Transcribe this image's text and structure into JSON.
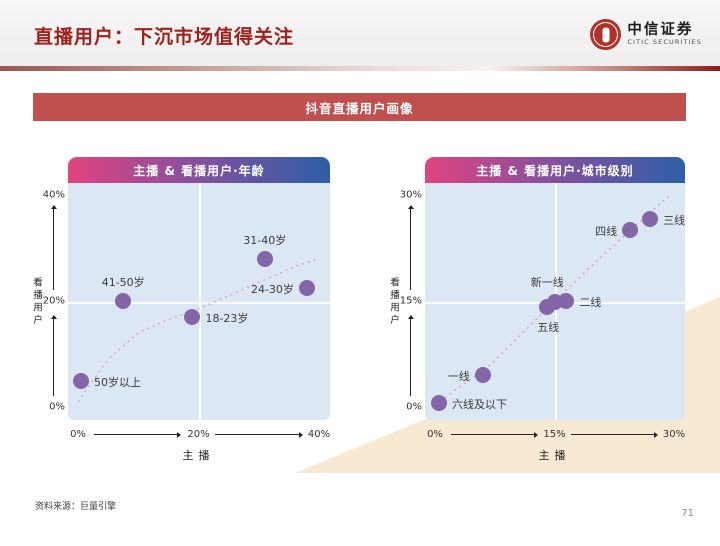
{
  "page": {
    "title": "直播用户：下沉市场值得关注",
    "source_note": "资料来源：巨量引擎",
    "page_number": "71"
  },
  "logo": {
    "icon": "citic-emblem-icon",
    "name_cn": "中信证券",
    "name_en": "CITIC SECURITIES"
  },
  "banner": {
    "label": "抖音直播用户画像"
  },
  "colors": {
    "title_red": "#9e211b",
    "banner_red": "#c0504d",
    "header_gradient_left": "#e2437e",
    "header_gradient_right": "#2d5ea7",
    "plot_background": "#dce7f4",
    "dot_purple": "#8465a8",
    "trend_pink": "#e39ab5",
    "wedge_beige": "#f8e9d2"
  },
  "chart_data": [
    {
      "type": "scatter",
      "title": "主播 & 看播用户·年龄",
      "xlabel": "主播",
      "ylabel": "看播用户",
      "x_ticks": [
        "0%",
        "20%",
        "40%"
      ],
      "y_ticks": [
        "0%",
        "20%",
        "40%"
      ],
      "xlim": [
        0,
        40
      ],
      "ylim": [
        0,
        40
      ],
      "grid": "center cross",
      "legend": "none",
      "points": [
        {
          "label": "50岁以上",
          "x": 0.5,
          "y": 5,
          "label_side": "right"
        },
        {
          "label": "41-50岁",
          "x": 7.5,
          "y": 20,
          "label_side": "above"
        },
        {
          "label": "18-23岁",
          "x": 19,
          "y": 17,
          "label_side": "right"
        },
        {
          "label": "31-40岁",
          "x": 31,
          "y": 28,
          "label_side": "above"
        },
        {
          "label": "24-30岁",
          "x": 38,
          "y": 22.5,
          "label_side": "left"
        }
      ],
      "trend_points": [
        [
          0,
          1
        ],
        [
          5,
          9
        ],
        [
          10,
          14
        ],
        [
          15,
          16.5
        ],
        [
          20,
          18.5
        ],
        [
          25,
          21
        ],
        [
          31,
          24
        ],
        [
          36,
          26.5
        ],
        [
          40,
          28
        ]
      ]
    },
    {
      "type": "scatter",
      "title": "主播 & 看播用户·城市级别",
      "xlabel": "主播",
      "ylabel": "看播用户",
      "x_ticks": [
        "0%",
        "15%",
        "30%"
      ],
      "y_ticks": [
        "0%",
        "15%",
        "30%"
      ],
      "xlim": [
        0,
        30
      ],
      "ylim": [
        0,
        30
      ],
      "grid": "center cross",
      "legend": "none",
      "points": [
        {
          "label": "六线及以下",
          "x": 0.5,
          "y": 0.5,
          "label_side": "right"
        },
        {
          "label": "一线",
          "x": 6,
          "y": 4.5,
          "label_side": "left"
        },
        {
          "label": "五线",
          "x": 14,
          "y": 14.2,
          "label_side": "below"
        },
        {
          "label": "新一线",
          "x": 15,
          "y": 14.8,
          "label_side": "above-left"
        },
        {
          "label": "二线",
          "x": 16.5,
          "y": 15,
          "label_side": "right"
        },
        {
          "label": "四线",
          "x": 24.5,
          "y": 25,
          "label_side": "left"
        },
        {
          "label": "三线",
          "x": 27,
          "y": 26.6,
          "label_side": "right"
        }
      ],
      "trend_points": [
        [
          0,
          0.3
        ],
        [
          7,
          6
        ],
        [
          15,
          15
        ],
        [
          23,
          23.5
        ],
        [
          29.5,
          30
        ]
      ]
    }
  ]
}
